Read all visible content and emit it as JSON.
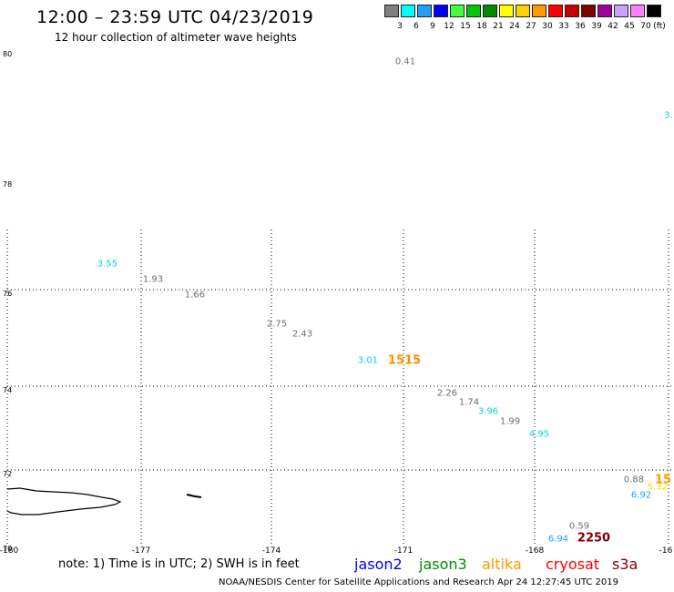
{
  "header": {
    "title": "12:00 – 23:59 UTC 04/23/2019",
    "subtitle": "12 hour collection of altimeter wave heights"
  },
  "colorbar": {
    "unit_label": "(ft)",
    "bins": [
      {
        "label": "3",
        "color": "#7f7f7f"
      },
      {
        "label": "6",
        "color": "#00ffff"
      },
      {
        "label": "9",
        "color": "#1fa0ff"
      },
      {
        "label": "12",
        "color": "#0000ff"
      },
      {
        "label": "15",
        "color": "#3fff3f"
      },
      {
        "label": "18",
        "color": "#00c800"
      },
      {
        "label": "21",
        "color": "#008c00"
      },
      {
        "label": "24",
        "color": "#ffff00"
      },
      {
        "label": "27",
        "color": "#ffd000"
      },
      {
        "label": "30",
        "color": "#ff9900"
      },
      {
        "label": "33",
        "color": "#ff0000"
      },
      {
        "label": "36",
        "color": "#c80000"
      },
      {
        "label": "39",
        "color": "#800000"
      },
      {
        "label": "42",
        "color": "#a000a0"
      },
      {
        "label": "45",
        "color": "#c8a0ff"
      },
      {
        "label": "70",
        "color": "#ff80ff"
      },
      {
        "label": "",
        "color": "#000000"
      }
    ]
  },
  "map": {
    "lat_labels": [
      "80",
      "78",
      "76",
      "74",
      "72",
      "70"
    ],
    "lon_labels": [
      "-180",
      "-177",
      "-174",
      "-171",
      "-168",
      "-16"
    ],
    "observations": [
      {
        "value": "0.41",
        "color": "#6e6e6e"
      },
      {
        "value": "3.",
        "color": "#00d8e0"
      },
      {
        "value": "3.55",
        "color": "#00d8e0"
      },
      {
        "value": "1.93",
        "color": "#6e6e6e"
      },
      {
        "value": "1.66",
        "color": "#6e6e6e"
      },
      {
        "value": "2.75",
        "color": "#6e6e6e"
      },
      {
        "value": "2.43",
        "color": "#6e6e6e"
      },
      {
        "value": "3.01",
        "color": "#00d8e0"
      },
      {
        "value": "1515",
        "color": "#ff8c00"
      },
      {
        "value": "2.26",
        "color": "#6e6e6e"
      },
      {
        "value": "1.74",
        "color": "#6e6e6e"
      },
      {
        "value": "3.96",
        "color": "#00d8e0"
      },
      {
        "value": "1.99",
        "color": "#6e6e6e"
      },
      {
        "value": "4.95",
        "color": "#00d8e0"
      },
      {
        "value": "0.88",
        "color": "#6e6e6e"
      },
      {
        "value": "15",
        "color": "#ff9900"
      },
      {
        "value": "5.32",
        "color": "#e8e000"
      },
      {
        "value": "6.92",
        "color": "#1fa0ff"
      },
      {
        "value": "0.59",
        "color": "#6e6e6e"
      },
      {
        "value": "6.94",
        "color": "#1fa0ff"
      },
      {
        "value": "2250",
        "color": "#800000"
      }
    ]
  },
  "footer": {
    "note": "note:  1) Time is in UTC;  2) SWH is in feet",
    "satellites": [
      {
        "name": "jason2",
        "color": "#0000ff"
      },
      {
        "name": "jason3",
        "color": "#008c00"
      },
      {
        "name": "altika",
        "color": "#ff9900"
      },
      {
        "name": "cryosat",
        "color": "#ff0000"
      },
      {
        "name": "s3a",
        "color": "#800000"
      }
    ],
    "credit": "NOAA/NESDIS Center for Satellite Applications and Research     Apr 24 12:27:45 UTC 2019"
  }
}
